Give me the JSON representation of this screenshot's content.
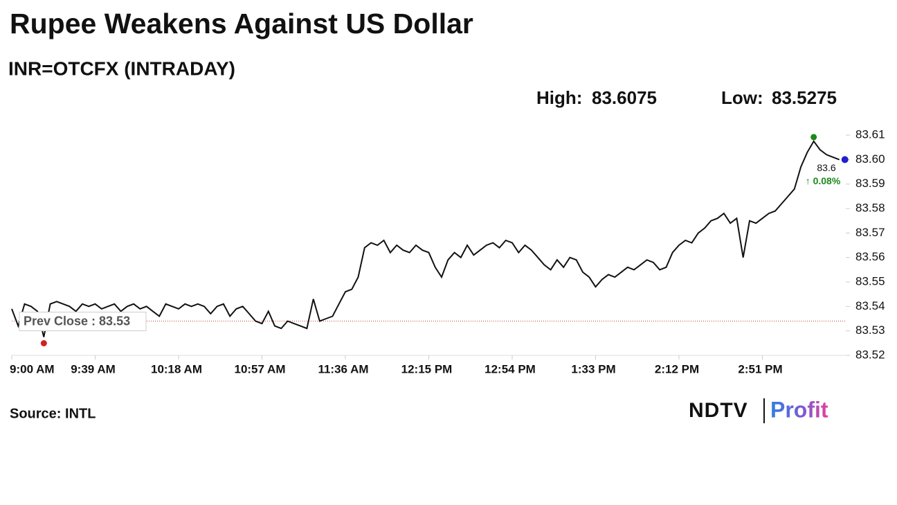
{
  "chart_data": {
    "type": "line",
    "title": "Rupee Weakens Against US Dollar",
    "subtitle": "INR=OTCFX (INTRADAY)",
    "high_label": "High:",
    "high": 83.6075,
    "low_label": "Low:",
    "low": 83.5275,
    "prev_close": 83.534,
    "prev_close_label": "Prev Close : 83.53",
    "last_label": "83.6",
    "change_label": "↑ 0.08%",
    "source": "Source: INTL",
    "logo_left": "NDTV",
    "logo_right": "Profit",
    "categories": [
      "9:00 AM",
      null,
      null,
      null,
      null,
      null,
      null,
      null,
      null,
      null,
      null,
      null,
      null,
      "9:39 AM",
      null,
      null,
      null,
      null,
      null,
      null,
      null,
      null,
      null,
      null,
      null,
      null,
      "10:18 AM",
      null,
      null,
      null,
      null,
      null,
      null,
      null,
      null,
      null,
      null,
      null,
      null,
      "10:57 AM",
      null,
      null,
      null,
      null,
      null,
      null,
      null,
      null,
      null,
      null,
      null,
      null,
      "11:36 AM",
      null,
      null,
      null,
      null,
      null,
      null,
      null,
      null,
      null,
      null,
      null,
      null,
      "12:15 PM",
      null,
      null,
      null,
      null,
      null,
      null,
      null,
      null,
      null,
      null,
      null,
      null,
      "12:54 PM",
      null,
      null,
      null,
      null,
      null,
      null,
      null,
      null,
      null,
      null,
      null,
      null,
      "1:33 PM",
      null,
      null,
      null,
      null,
      null,
      null,
      null,
      null,
      null,
      null,
      null,
      null,
      "2:12 PM",
      null,
      null,
      null,
      null,
      null,
      null,
      null,
      null,
      null,
      null,
      null,
      null,
      "2:51 PM",
      null,
      null,
      null,
      null,
      null,
      null,
      null,
      null,
      null,
      null,
      null,
      null
    ],
    "series": [
      {
        "color": "#111111",
        "values": [
          83.539,
          83.532,
          83.541,
          83.54,
          83.538,
          83.5275,
          83.541,
          83.542,
          83.541,
          83.54,
          83.538,
          83.541,
          83.54,
          83.541,
          83.539,
          83.54,
          83.541,
          83.538,
          83.54,
          83.541,
          83.539,
          83.54,
          83.538,
          83.536,
          83.541,
          83.54,
          83.539,
          83.541,
          83.54,
          83.541,
          83.54,
          83.537,
          83.54,
          83.541,
          83.536,
          83.539,
          83.54,
          83.537,
          83.534,
          83.533,
          83.538,
          83.532,
          83.531,
          83.534,
          83.533,
          83.532,
          83.531,
          83.543,
          83.534,
          83.535,
          83.536,
          83.541,
          83.546,
          83.547,
          83.552,
          83.564,
          83.566,
          83.565,
          83.567,
          83.562,
          83.565,
          83.563,
          83.562,
          83.565,
          83.563,
          83.562,
          83.556,
          83.552,
          83.559,
          83.562,
          83.56,
          83.565,
          83.561,
          83.563,
          83.565,
          83.566,
          83.564,
          83.567,
          83.566,
          83.562,
          83.565,
          83.563,
          83.56,
          83.557,
          83.555,
          83.559,
          83.556,
          83.56,
          83.559,
          83.554,
          83.552,
          83.548,
          83.551,
          83.553,
          83.552,
          83.554,
          83.556,
          83.555,
          83.557,
          83.559,
          83.558,
          83.555,
          83.556,
          83.562,
          83.565,
          83.567,
          83.566,
          83.57,
          83.572,
          83.575,
          83.576,
          83.578,
          83.574,
          83.576,
          83.56,
          83.575,
          83.574,
          83.576,
          83.578,
          83.579,
          83.582,
          83.585,
          83.588,
          83.597,
          83.603,
          83.6075,
          83.604,
          83.602,
          83.601,
          83.6
        ]
      }
    ],
    "ylim": [
      83.52,
      83.612
    ],
    "yticks": [
      83.52,
      83.53,
      83.54,
      83.55,
      83.56,
      83.57,
      83.58,
      83.59,
      {
        "value": 83.6,
        "label": "83.60"
      },
      83.61
    ],
    "high_color": "#1a8a1a",
    "low_color": "#d42020",
    "last_color": "#1f1fd0",
    "prev_close_color": "#c04040"
  }
}
